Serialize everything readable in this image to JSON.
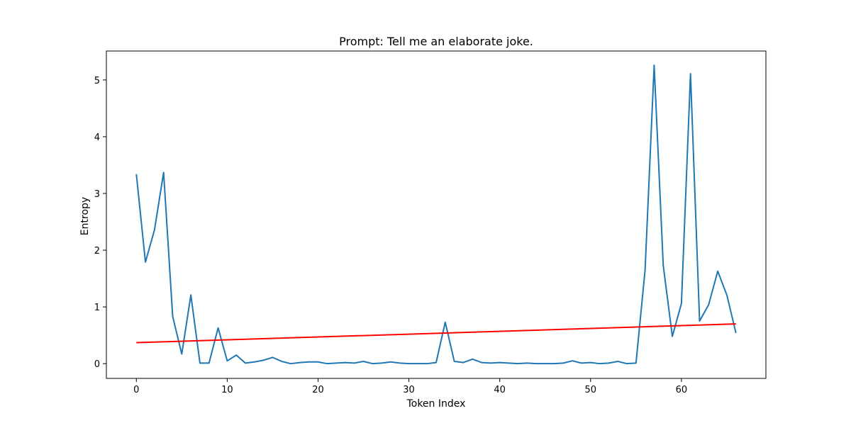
{
  "chart_data": {
    "type": "line",
    "title": "Prompt: Tell me an elaborate joke.",
    "xlabel": "Token Index",
    "ylabel": "Entropy",
    "xlim": [
      -3.3,
      69.3
    ],
    "ylim": [
      -0.26,
      5.51
    ],
    "xticks": [
      0,
      10,
      20,
      30,
      40,
      50,
      60
    ],
    "yticks": [
      0,
      1,
      2,
      3,
      4,
      5
    ],
    "grid": false,
    "series": [
      {
        "color": "#1f77b4",
        "x": [
          0,
          1,
          2,
          3,
          4,
          5,
          6,
          7,
          8,
          9,
          10,
          11,
          12,
          13,
          14,
          15,
          16,
          17,
          18,
          19,
          20,
          21,
          22,
          23,
          24,
          25,
          26,
          27,
          28,
          29,
          30,
          31,
          32,
          33,
          34,
          35,
          36,
          37,
          38,
          39,
          40,
          41,
          42,
          43,
          44,
          45,
          46,
          47,
          48,
          49,
          50,
          51,
          52,
          53,
          54,
          55,
          56,
          57,
          58,
          59,
          60,
          61,
          62,
          63,
          64,
          65,
          66
        ],
        "y": [
          3.34,
          1.79,
          2.36,
          3.37,
          0.83,
          0.17,
          1.21,
          0.01,
          0.01,
          0.63,
          0.05,
          0.15,
          0.01,
          0.03,
          0.06,
          0.11,
          0.04,
          0.0,
          0.02,
          0.03,
          0.03,
          0.0,
          0.01,
          0.02,
          0.01,
          0.04,
          0.0,
          0.01,
          0.03,
          0.01,
          0.0,
          0.0,
          0.0,
          0.02,
          0.73,
          0.04,
          0.02,
          0.08,
          0.02,
          0.01,
          0.02,
          0.01,
          0.0,
          0.01,
          0.0,
          0.0,
          0.0,
          0.01,
          0.05,
          0.01,
          0.02,
          0.0,
          0.01,
          0.04,
          0.0,
          0.01,
          1.65,
          5.26,
          1.73,
          0.48,
          1.06,
          5.11,
          0.75,
          1.04,
          1.63,
          1.21,
          0.54
        ]
      },
      {
        "color": "#ff0000",
        "x": [
          0,
          66
        ],
        "y": [
          0.37,
          0.7
        ]
      }
    ]
  }
}
